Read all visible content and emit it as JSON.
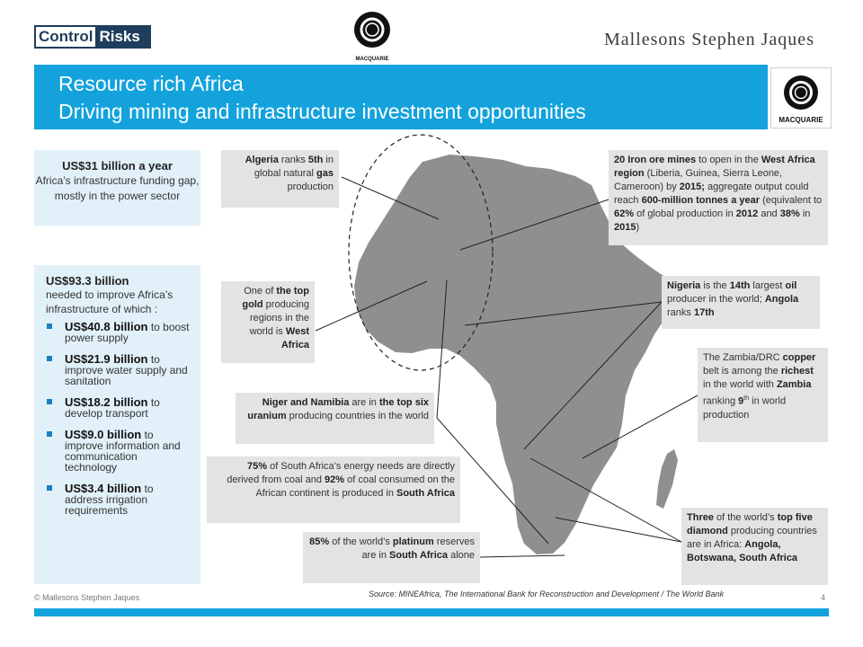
{
  "header": {
    "control_risks_part1": "Control",
    "control_risks_part2": "Risks",
    "macquarie_label": "MACQUARIE",
    "msj_logo": "Mallesons Stephen Jaques"
  },
  "title": {
    "line1": "Resource rich Africa",
    "line2": "Driving mining and infrastructure investment opportunities"
  },
  "left_panel": {
    "box1_heading": "US$31 billion a year",
    "box1_text": "Africa’s infrastructure funding gap, mostly in the power sector",
    "box2_heading": "US$93.3 billion",
    "box2_text": "needed to improve Africa’s infrastructure of which :",
    "bullets": [
      {
        "amount": "US$40.8 billion",
        "rest": " to boost power supply"
      },
      {
        "amount": "US$21.9 billion",
        "rest": " to improve water supply and sanitation"
      },
      {
        "amount": "US$18.2 billion",
        "rest": " to develop transport"
      },
      {
        "amount": "US$9.0 billion",
        "rest": " to improve information and communication technology"
      },
      {
        "amount": "US$3.4 billion",
        "rest": " to address irrigation requirements"
      }
    ]
  },
  "callouts": {
    "algeria": {
      "a": "Algeria",
      "b": " ranks ",
      "c": "5th",
      "d": " in global natural ",
      "e": "gas",
      "f": " production"
    },
    "gold": {
      "a": "One of ",
      "b": "the top gold",
      "c": " producing regions in the world is ",
      "d": "West Africa"
    },
    "uranium": {
      "a": "Niger and Namibia",
      "b": " are in ",
      "c": "the top six uranium",
      "d": " producing countries in the world"
    },
    "energy": {
      "a": "75%",
      "b": " of South Africa’s energy needs are directly derived from coal and ",
      "c": "92%",
      "d": " of coal consumed on the African continent is produced in ",
      "e": "South Africa"
    },
    "platinum": {
      "a": "85%",
      "b": " of the world’s ",
      "c": "platinum",
      "d": " reserves are in ",
      "e": "South Africa",
      "f": " alone"
    },
    "iron": {
      "a": "20 Iron ore mines",
      "b": " to open in the ",
      "c": "West Africa region",
      "d": " (Liberia, Guinea, Sierra Leone, Cameroon) by ",
      "e": "2015;",
      "f": " aggregate output could reach ",
      "g": "600-million tonnes a year",
      "h": "  (equivalent to ",
      "i": "62%",
      "j": " of global production in ",
      "k": "2012",
      "l": " and ",
      "m": "38%",
      "n": " in ",
      "o": "2015",
      "p": ")"
    },
    "nigeria": {
      "a": "Nigeria",
      "b": " is the ",
      "c": "14th",
      "d": " largest ",
      "e": "oil",
      "f": " producer in the world; ",
      "g": "Angola",
      "h": " ranks ",
      "i": "17th"
    },
    "copper": {
      "a": "The Zambia/DRC ",
      "b": "copper",
      "c": " belt is among the ",
      "d": "richest",
      "e": " in the world with ",
      "f": "Zambia",
      "g": " ranking ",
      "h": "9",
      "i": "th",
      "j": " in world production"
    },
    "diamond": {
      "a": "Three",
      "b": " of the world’s ",
      "c": "top five diamond",
      "d": " producing countries are in Africa: ",
      "e": "Angola, Botswana, South Africa"
    }
  },
  "footer": {
    "copyright": "© Mallesons Stephen Jaques",
    "source": "Source: MINEAfrica, The International Bank for Reconstruction and Development / The World Bank",
    "page": "4"
  },
  "colors": {
    "brand_blue": "#13a2dc",
    "dark_navy": "#1f3d5c",
    "callout_grey": "#e3e3e3",
    "panel_blue": "#e2f1f9",
    "map_grey": "#8f8f8f"
  }
}
